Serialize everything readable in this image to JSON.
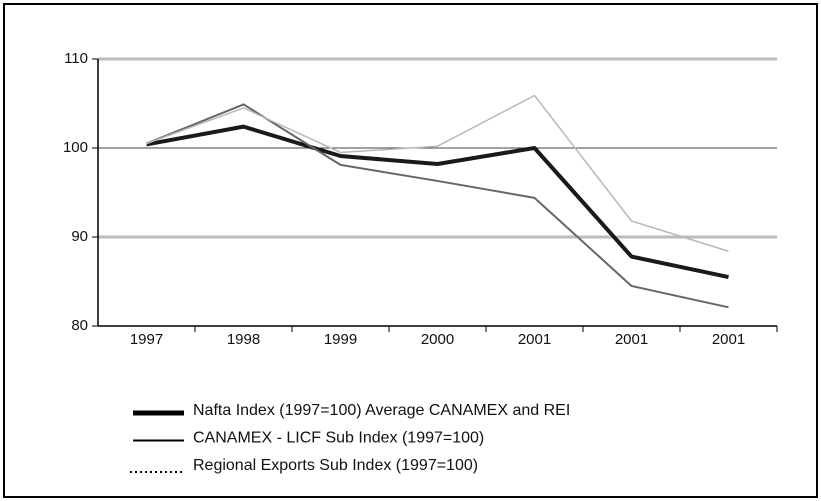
{
  "chart_data": {
    "type": "line",
    "categories": [
      "1997",
      "1998",
      "1999",
      "2000",
      "2001",
      "2001",
      "2001"
    ],
    "series": [
      {
        "name": "Nafta Index (1997=100) Average CANAMEX and REI",
        "color": "#1a1a1a",
        "values": [
          100.4,
          102.4,
          99.1,
          98.2,
          100,
          87.8,
          85.5
        ]
      },
      {
        "name": "CANAMEX - LICF Sub Index (1997=100)",
        "color": "#666666",
        "values": [
          100.5,
          104.9,
          98.1,
          96.3,
          94.4,
          84.5,
          82.1
        ]
      },
      {
        "name": "Regional Exports Sub Index (1997=100)",
        "color": "#b8b8b8",
        "values": [
          100.5,
          104.5,
          99.5,
          100.2,
          105.9,
          91.8,
          88.4
        ]
      }
    ],
    "ylim": [
      80,
      110
    ],
    "yticks": [
      80,
      90,
      100,
      110
    ],
    "grid": true
  }
}
